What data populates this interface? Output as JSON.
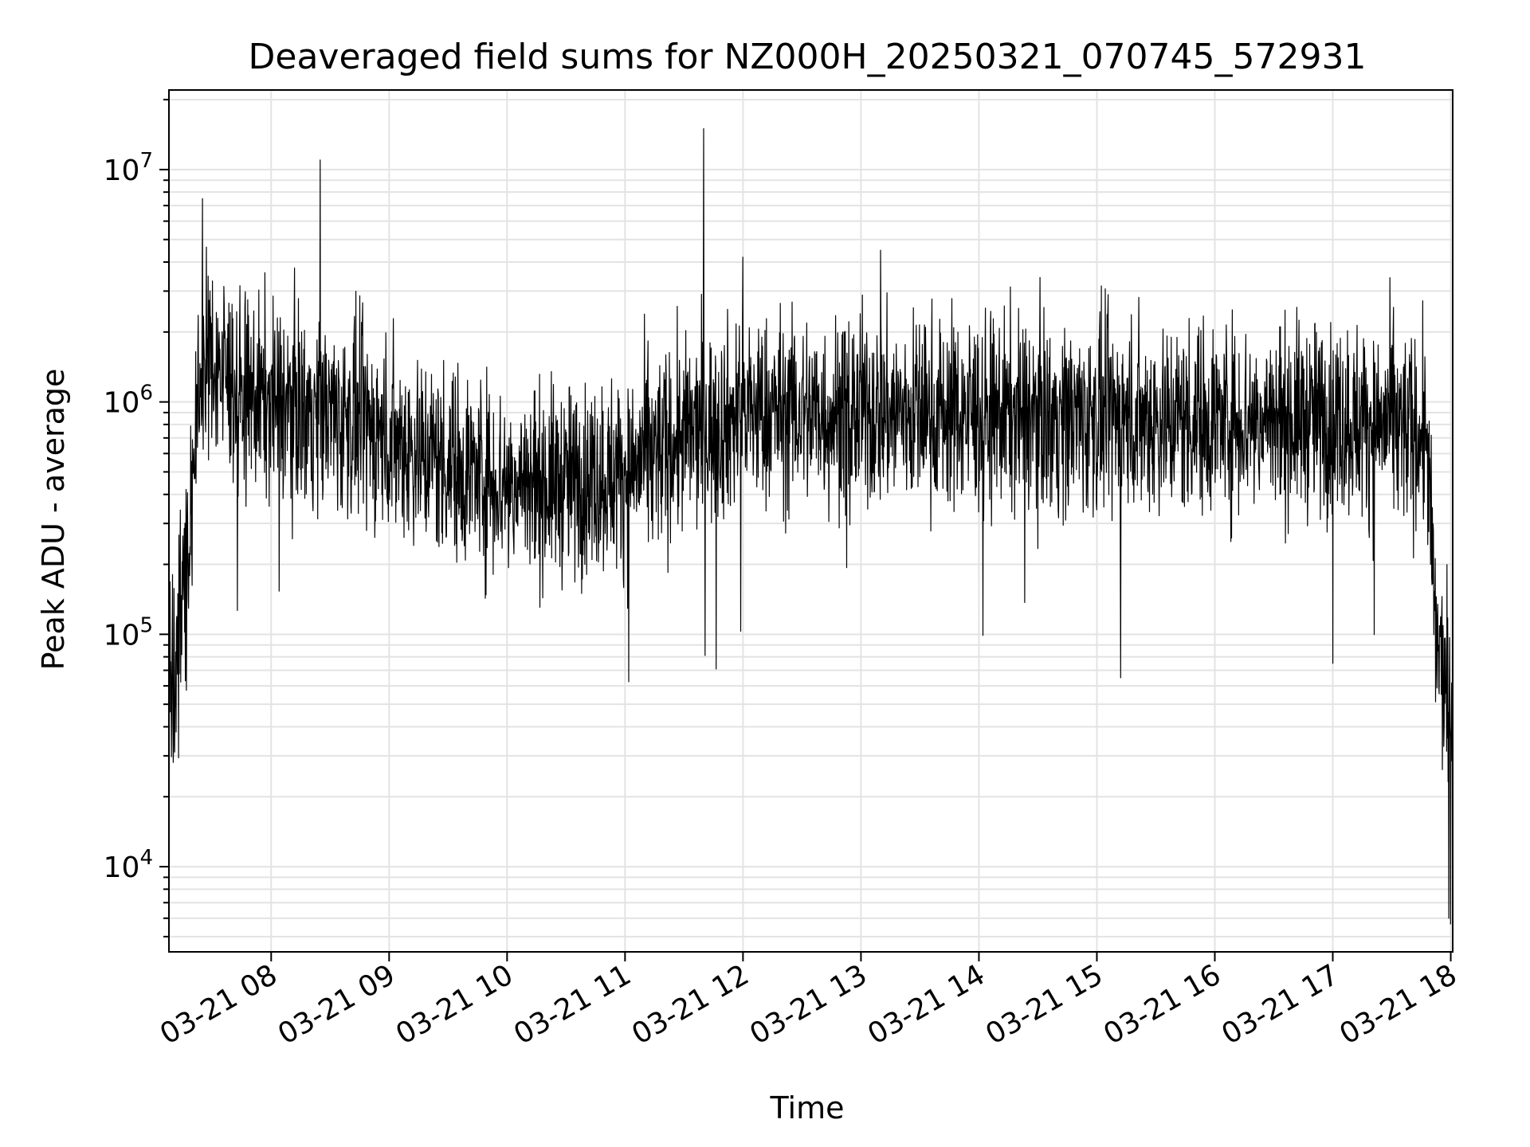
{
  "chart_data": {
    "type": "line",
    "title": "Deaveraged field sums for NZ000H_20250321_070745_572931",
    "xlabel": "Time",
    "ylabel": "Peak ADU - average",
    "y_scale": "log",
    "ylim": [
      4300,
      22000000
    ],
    "xlim": [
      "2025-03-21 07:08",
      "2025-03-21 18:01"
    ],
    "x_tick_labels": [
      "03-21 08",
      "03-21 09",
      "03-21 10",
      "03-21 11",
      "03-21 12",
      "03-21 13",
      "03-21 14",
      "03-21 15",
      "03-21 16",
      "03-21 17",
      "03-21 18"
    ],
    "y_tick_labels": [
      {
        "base": "10",
        "exp": "4",
        "value": 10000
      },
      {
        "base": "10",
        "exp": "5",
        "value": 100000
      },
      {
        "base": "10",
        "exp": "6",
        "value": 1000000
      },
      {
        "base": "10",
        "exp": "7",
        "value": 10000000
      }
    ],
    "grid": true,
    "line_color": "#000000",
    "series_envelope": {
      "x": [
        "2025-03-21 07:08",
        "2025-03-21 07:13",
        "2025-03-21 07:18",
        "2025-03-21 07:25",
        "2025-03-21 07:30",
        "2025-03-21 07:45",
        "2025-03-21 08:00",
        "2025-03-21 08:30",
        "2025-03-21 09:00",
        "2025-03-21 09:30",
        "2025-03-21 10:00",
        "2025-03-21 10:30",
        "2025-03-21 11:00",
        "2025-03-21 11:30",
        "2025-03-21 12:00",
        "2025-03-21 13:00",
        "2025-03-21 14:00",
        "2025-03-21 15:00",
        "2025-03-21 16:00",
        "2025-03-21 17:00",
        "2025-03-21 17:30",
        "2025-03-21 17:48",
        "2025-03-21 17:52",
        "2025-03-21 17:57",
        "2025-03-21 18:00"
      ],
      "median": [
        60000,
        90000,
        250000,
        1500000,
        1500000,
        1100000,
        1000000,
        900000,
        700000,
        550000,
        450000,
        450000,
        500000,
        700000,
        900000,
        900000,
        900000,
        850000,
        850000,
        850000,
        800000,
        700000,
        100000,
        60000,
        40000
      ]
    },
    "spikes": [
      {
        "x": "2025-03-21 07:25",
        "y": 7500000
      },
      {
        "x": "2025-03-21 08:25",
        "y": 11000000
      },
      {
        "x": "2025-03-21 11:40",
        "y": 15000000
      },
      {
        "x": "2025-03-21 12:00",
        "y": 4200000
      },
      {
        "x": "2025-03-21 13:10",
        "y": 4500000
      },
      {
        "x": "2025-03-21 15:12",
        "y": 65000
      },
      {
        "x": "2025-03-21 17:00",
        "y": 75000
      },
      {
        "x": "2025-03-21 17:59",
        "y": 6000
      }
    ]
  }
}
